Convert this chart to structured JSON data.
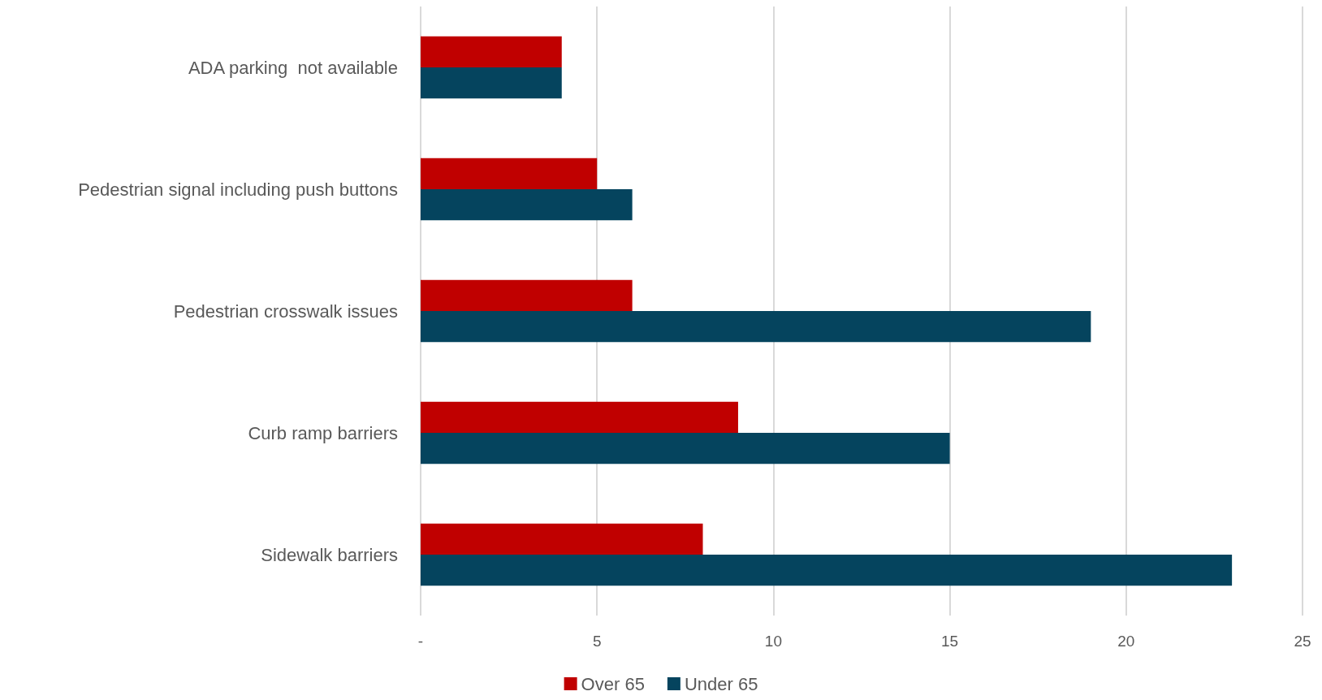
{
  "chart_data": {
    "type": "bar",
    "orientation": "horizontal",
    "categories": [
      "ADA parking  not available",
      "Pedestrian signal including push buttons",
      "Pedestrian crosswalk issues",
      "Curb ramp barriers",
      "Sidewalk barriers"
    ],
    "series": [
      {
        "name": "Over 65",
        "color": "#c00000",
        "values": [
          4,
          5,
          6,
          9,
          8
        ]
      },
      {
        "name": "Under 65",
        "color": "#05445e",
        "values": [
          4,
          6,
          19,
          15,
          23
        ]
      }
    ],
    "xlim": [
      0,
      25
    ],
    "xticks": [
      {
        "value": 0,
        "label": "-"
      },
      5,
      10,
      15,
      20,
      25
    ],
    "grid": "x",
    "legend": "bottom"
  }
}
